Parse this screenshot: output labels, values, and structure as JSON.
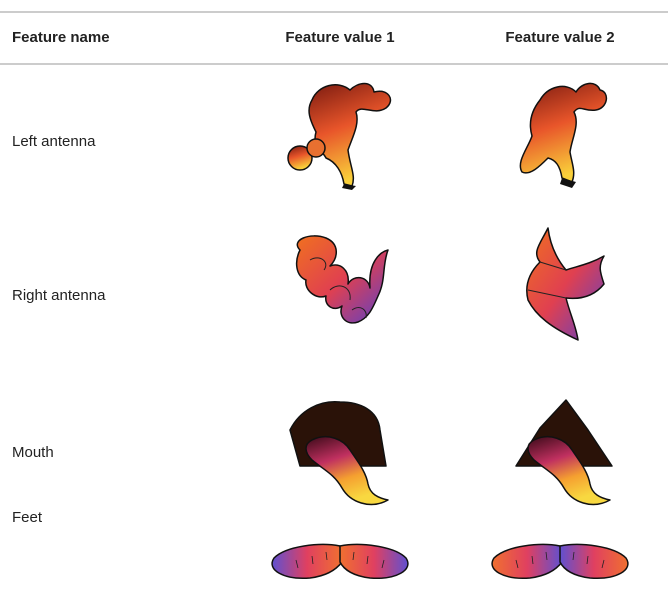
{
  "table": {
    "header": [
      "Feature name",
      "Feature value 1",
      "Feature value 2"
    ],
    "rows": [
      "Left antenna",
      "Right antenna",
      "Mouth",
      "Feet"
    ]
  }
}
